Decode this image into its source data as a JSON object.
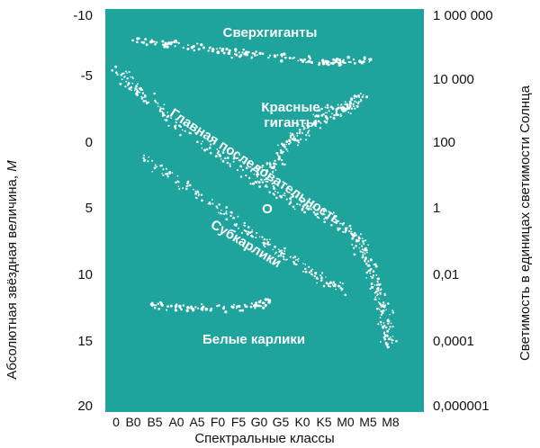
{
  "colors": {
    "plot_background": "#1fa39d",
    "dots": "#ffffff",
    "text": "#111111"
  },
  "y_axis": {
    "title_prefix": "Абсолютная звёздная величина, ",
    "title_symbol": "M",
    "ticks": [
      "-10",
      "-5",
      "0",
      "5",
      "10",
      "15",
      "20"
    ],
    "range": [
      -10,
      20
    ]
  },
  "y_axis_right": {
    "title": "Светимость в единицах светимости  Солнца",
    "ticks": [
      "1 000 000",
      "10 000",
      "100",
      "1",
      "0,01",
      "0,0001",
      "0,000001"
    ]
  },
  "x_axis": {
    "title": "Спектральные классы",
    "ticks": [
      "0",
      "B0",
      "B5",
      "A0",
      "A5",
      "F0",
      "F5",
      "G0",
      "G5",
      "K0",
      "K5",
      "M0",
      "M5",
      "M8"
    ]
  },
  "regions": {
    "supergiants": "Сверхгиганты",
    "red_giants_line1": "Красные",
    "red_giants_line2": "гиганты",
    "main_sequence": "Главная последовательность",
    "subdwarfs": "Субкарлики",
    "white_dwarfs": "Белые карлики"
  },
  "sun_marker": "O"
}
